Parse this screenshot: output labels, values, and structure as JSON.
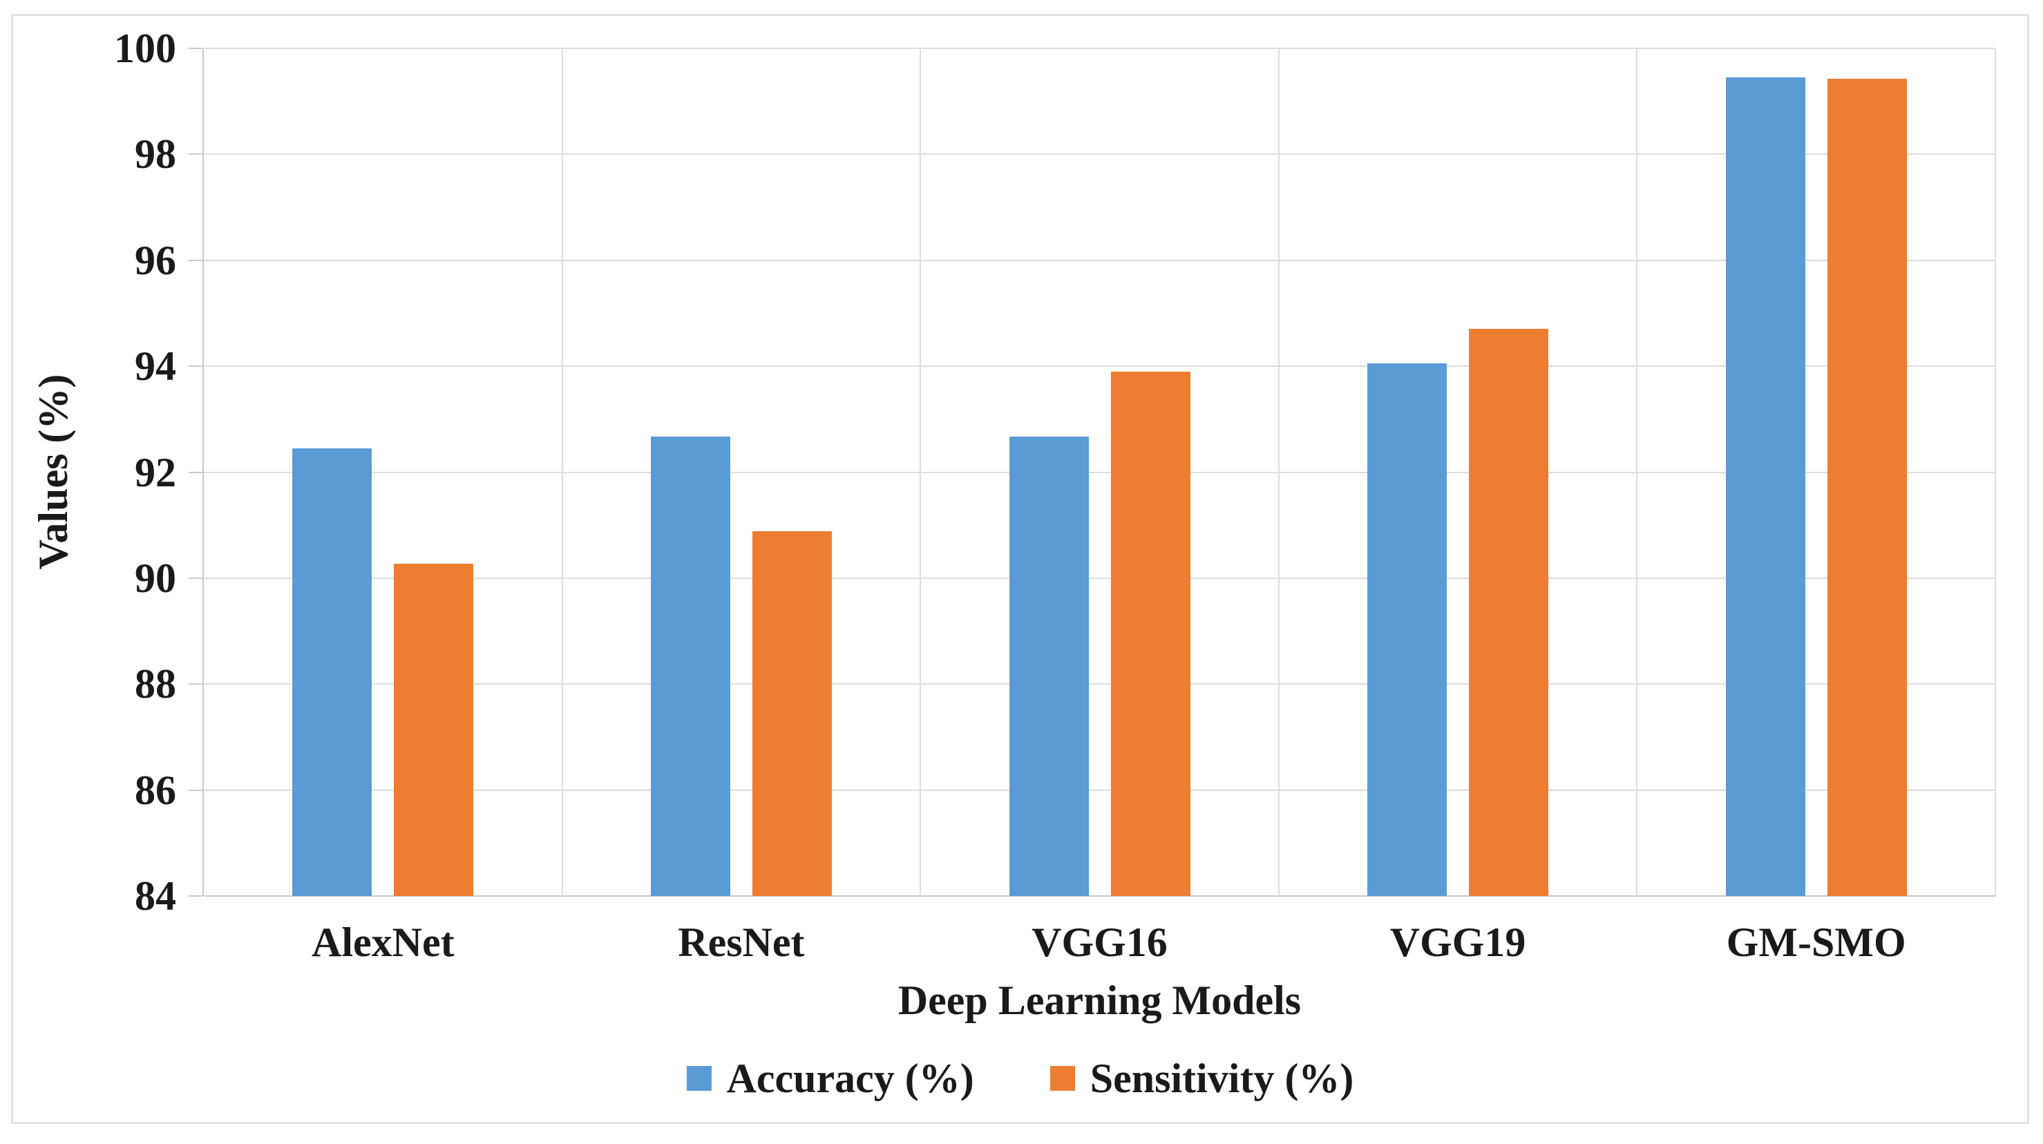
{
  "figure": {
    "background_color": "#ffffff",
    "border_color": "#e2e2e2",
    "gridline_color": "#dcdcdc",
    "axis_line_color": "#c9c9c9",
    "text_color": "#1a1a1a"
  },
  "chart_data": {
    "type": "bar",
    "title": "",
    "xlabel": "Deep Learning Models",
    "ylabel": "Values (%)",
    "categories": [
      "AlexNet",
      "ResNet",
      "VGG16",
      "VGG19",
      "GM-SMO"
    ],
    "series": [
      {
        "name": "Accuracy (%)",
        "color": "#5B9BD5",
        "values": [
          92.45,
          92.67,
          92.67,
          94.06,
          99.45
        ]
      },
      {
        "name": "Sensitivity (%)",
        "color": "#ED7D31",
        "values": [
          90.27,
          90.89,
          93.9,
          94.7,
          99.42
        ]
      }
    ],
    "ylim": [
      84,
      100
    ],
    "yticks": [
      84,
      86,
      88,
      90,
      92,
      94,
      96,
      98,
      100
    ],
    "grid": true,
    "vertical_category_gridlines": true,
    "legend_position": "bottom"
  }
}
